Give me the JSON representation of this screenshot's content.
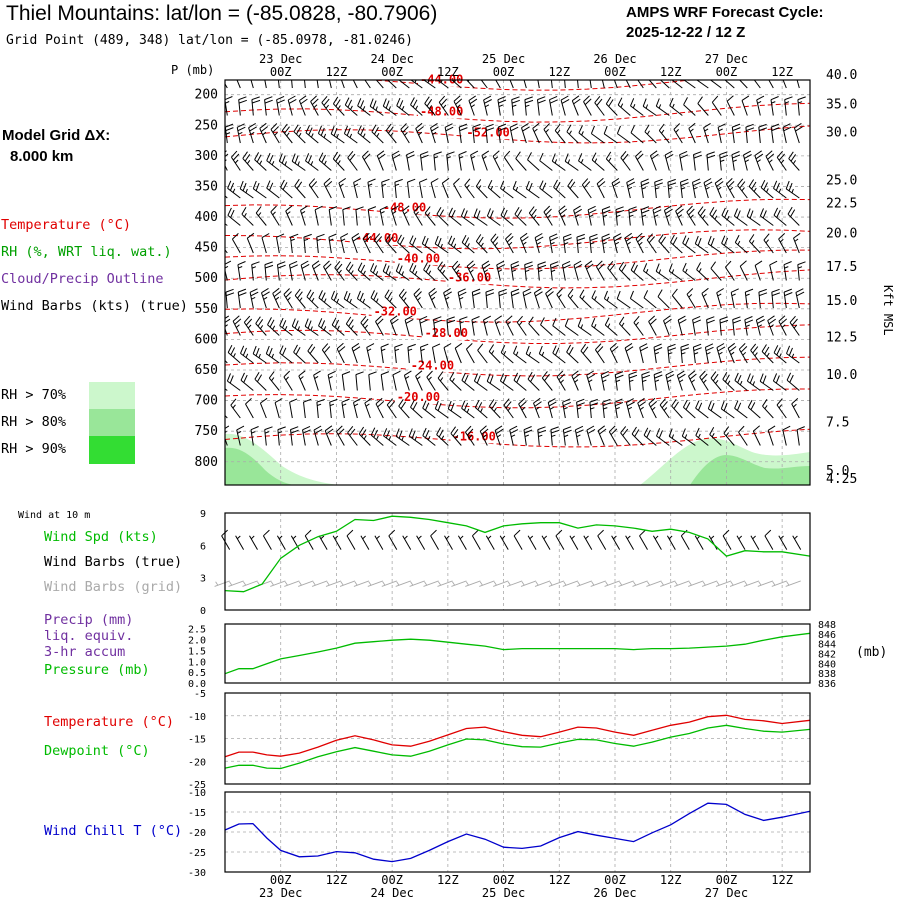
{
  "header": {
    "title": "Thiel Mountains:  lat/lon = (-85.0828, -80.7906)",
    "subtitle": "Grid Point (489, 348) lat/lon = (-85.0978, -81.0246)",
    "cycle_line1": "AMPS WRF Forecast Cycle:",
    "cycle_line2": "2025-12-22 / 12  Z"
  },
  "left_panel": {
    "model_grid_label": "Model Grid ΔX:",
    "model_grid_value": "8.000 km",
    "legend": [
      {
        "text": "Temperature (°C)",
        "color": "#e00000"
      },
      {
        "text": "RH (%, WRT liq. wat.)",
        "color": "#00a000"
      },
      {
        "text": "Cloud/Precip Outline",
        "color": "#7030a0"
      },
      {
        "text": "Wind Barbs (kts) (true)",
        "color": "#000000"
      }
    ],
    "rh_legend": [
      {
        "text": "RH > 70%",
        "color": "#ccf7cc"
      },
      {
        "text": "RH > 80%",
        "color": "#99e699"
      },
      {
        "text": "RH > 90%",
        "color": "#33dd33"
      }
    ]
  },
  "time_axis": {
    "top_dates": [
      "23 Dec",
      "24 Dec",
      "25 Dec",
      "26 Dec",
      "27 Dec"
    ],
    "bottom_dates": [
      "23 Dec",
      "24 Dec",
      "25 Dec",
      "26 Dec",
      "27 Dec"
    ],
    "hour_labels": [
      "00Z",
      "12Z",
      "00Z",
      "12Z",
      "00Z",
      "12Z",
      "00Z",
      "12Z",
      "00Z",
      "12Z"
    ],
    "hour_offsets": [
      12,
      24,
      36,
      48,
      60,
      72,
      84,
      96,
      108,
      120
    ]
  },
  "chart_data": [
    {
      "type": "contour",
      "name": "upper-air cross section",
      "y_title": "P (mb)",
      "right_title": "Kft MSL",
      "pressure_levels": [
        200,
        250,
        300,
        350,
        400,
        450,
        500,
        550,
        600,
        650,
        700,
        750,
        800
      ],
      "pressure_labels": [
        "200",
        "250",
        "300",
        "350",
        "400",
        "450",
        "500",
        "550",
        "600",
        "650",
        "700",
        "750",
        "800"
      ],
      "height_labels": [
        "40.0",
        "35.0",
        "30.0",
        "25.0",
        "22.5",
        "20.0",
        "17.5",
        "15.0",
        "12.5",
        "10.0",
        "7.5",
        "5.0",
        "4.25"
      ],
      "height_pressures": [
        168,
        216,
        262,
        340,
        378,
        427,
        482,
        537,
        597,
        658,
        736,
        815,
        828
      ],
      "isotherm_labels": [
        {
          "text": "-44.00",
          "t": 42,
          "p": 182
        },
        {
          "text": "-48.00",
          "t": 42,
          "p": 234
        },
        {
          "text": "-52.00",
          "t": 52,
          "p": 268
        },
        {
          "text": "-48.00",
          "t": 34,
          "p": 391
        },
        {
          "text": "-44.00",
          "t": 28,
          "p": 441
        },
        {
          "text": "-40.00",
          "t": 37,
          "p": 474
        },
        {
          "text": "-36.00",
          "t": 48,
          "p": 505
        },
        {
          "text": "-32.00",
          "t": 32,
          "p": 561
        },
        {
          "text": "-28.00",
          "t": 43,
          "p": 596
        },
        {
          "text": "-24.00",
          "t": 40,
          "p": 649
        },
        {
          "text": "-20.00",
          "t": 37,
          "p": 701
        },
        {
          "text": "-16.00",
          "t": 49,
          "p": 765
        }
      ]
    },
    {
      "type": "line",
      "name": "10 m wind speed",
      "header": "Wind at 10 m",
      "y_ticks": [
        "0",
        "3",
        "6",
        "9"
      ],
      "ylim": [
        0,
        9
      ],
      "legend": [
        {
          "text": "Wind Spd (kts)",
          "color": "#00bb00"
        },
        {
          "text": "Wind Barbs (true)",
          "color": "#000000"
        },
        {
          "text": "Wind Barbs (grid)",
          "color": "#aaaaaa"
        }
      ],
      "x": [
        0,
        4,
        8,
        12,
        16,
        20,
        24,
        28,
        32,
        36,
        40,
        44,
        48,
        52,
        56,
        60,
        64,
        68,
        72,
        76,
        80,
        84,
        88,
        92,
        96,
        100,
        104,
        108,
        112,
        116,
        120,
        126
      ],
      "values": [
        1.8,
        1.7,
        2.4,
        4.8,
        6.0,
        6.8,
        7.3,
        8.4,
        8.3,
        8.7,
        8.6,
        8.4,
        8.1,
        7.8,
        7.2,
        7.8,
        8.0,
        8.1,
        8.1,
        7.6,
        7.9,
        7.8,
        7.6,
        7.3,
        7.5,
        7.2,
        6.6,
        5.0,
        5.5,
        5.4,
        5.4,
        5.0
      ]
    },
    {
      "type": "line",
      "name": "pressure and precip",
      "legend": [
        {
          "text": "Precip (mm)",
          "color": "#7030a0"
        },
        {
          "text": "liq. equiv.",
          "color": "#7030a0"
        },
        {
          "text": "3-hr accum",
          "color": "#7030a0"
        },
        {
          "text": "Pressure (mb)",
          "color": "#00bb00"
        }
      ],
      "left_ticks": [
        "0.0",
        "0.5",
        "1.0",
        "1.5",
        "2.0",
        "2.5"
      ],
      "right_ticks": [
        "836",
        "838",
        "840",
        "842",
        "844",
        "846",
        "848"
      ],
      "right_unit": "(mb)",
      "ylim": [
        836,
        848
      ],
      "x": [
        0,
        3,
        6,
        9,
        12,
        16,
        20,
        24,
        28,
        32,
        36,
        40,
        44,
        48,
        52,
        56,
        60,
        64,
        68,
        72,
        76,
        80,
        84,
        88,
        92,
        96,
        100,
        104,
        108,
        112,
        116,
        120,
        126
      ],
      "values": [
        837.9,
        838.9,
        838.9,
        839.9,
        840.9,
        841.6,
        842.3,
        843.1,
        844.1,
        844.4,
        844.7,
        844.9,
        844.7,
        844.3,
        843.9,
        843.5,
        842.8,
        843.0,
        843.0,
        843.0,
        843.0,
        843.0,
        843.0,
        842.8,
        843.0,
        843.0,
        843.1,
        843.3,
        843.5,
        843.9,
        844.7,
        845.4,
        846.1
      ]
    },
    {
      "type": "line",
      "name": "temperature and dewpoint",
      "y_ticks": [
        "-25",
        "-20",
        "-15",
        "-10",
        "-5"
      ],
      "ylim": [
        -25,
        -5
      ],
      "x": [
        0,
        3,
        6,
        9,
        12,
        16,
        20,
        24,
        28,
        32,
        36,
        40,
        44,
        48,
        52,
        56,
        60,
        64,
        68,
        72,
        76,
        80,
        84,
        88,
        92,
        96,
        100,
        104,
        108,
        112,
        116,
        120,
        126
      ],
      "series": [
        {
          "name": "Temperature (°C)",
          "color": "#e00000",
          "values": [
            -19.0,
            -18.0,
            -18.0,
            -18.6,
            -18.9,
            -18.2,
            -16.9,
            -15.4,
            -14.4,
            -15.3,
            -16.4,
            -16.7,
            -15.6,
            -14.2,
            -12.8,
            -12.5,
            -13.5,
            -14.3,
            -14.6,
            -13.6,
            -12.5,
            -12.7,
            -13.6,
            -14.3,
            -13.2,
            -12.1,
            -11.4,
            -10.2,
            -9.9,
            -10.8,
            -11.1,
            -11.7,
            -11.0
          ]
        },
        {
          "name": "Dewpoint (°C)",
          "color": "#00bb00",
          "values": [
            -21.5,
            -20.9,
            -20.9,
            -21.5,
            -21.6,
            -20.4,
            -19.0,
            -17.9,
            -17.0,
            -17.8,
            -18.6,
            -18.9,
            -17.8,
            -16.4,
            -15.1,
            -15.3,
            -16.2,
            -16.8,
            -16.9,
            -16.0,
            -15.2,
            -15.3,
            -16.1,
            -16.7,
            -15.8,
            -14.7,
            -13.9,
            -12.7,
            -12.1,
            -12.8,
            -13.4,
            -13.6,
            -13.0
          ]
        }
      ]
    },
    {
      "type": "line",
      "name": "wind chill",
      "y_ticks": [
        "-30",
        "-25",
        "-20",
        "-15",
        "-10"
      ],
      "ylim": [
        -30,
        -10
      ],
      "legend": [
        {
          "text": "Wind Chill T (°C)",
          "color": "#0000cc"
        }
      ],
      "x": [
        0,
        3,
        6,
        9,
        12,
        16,
        20,
        24,
        28,
        32,
        36,
        40,
        44,
        48,
        52,
        56,
        60,
        64,
        68,
        72,
        76,
        80,
        84,
        88,
        92,
        96,
        100,
        104,
        108,
        112,
        116,
        120,
        126
      ],
      "values": [
        -19.5,
        -18.0,
        -17.9,
        -21.5,
        -24.6,
        -26.2,
        -26.0,
        -24.9,
        -25.2,
        -26.8,
        -27.4,
        -26.6,
        -24.6,
        -22.4,
        -20.5,
        -21.8,
        -23.8,
        -24.1,
        -23.5,
        -21.4,
        -19.9,
        -20.8,
        -21.6,
        -22.4,
        -20.2,
        -18.2,
        -15.4,
        -12.8,
        -13.1,
        -15.6,
        -17.1,
        -16.3,
        -14.8
      ]
    }
  ]
}
